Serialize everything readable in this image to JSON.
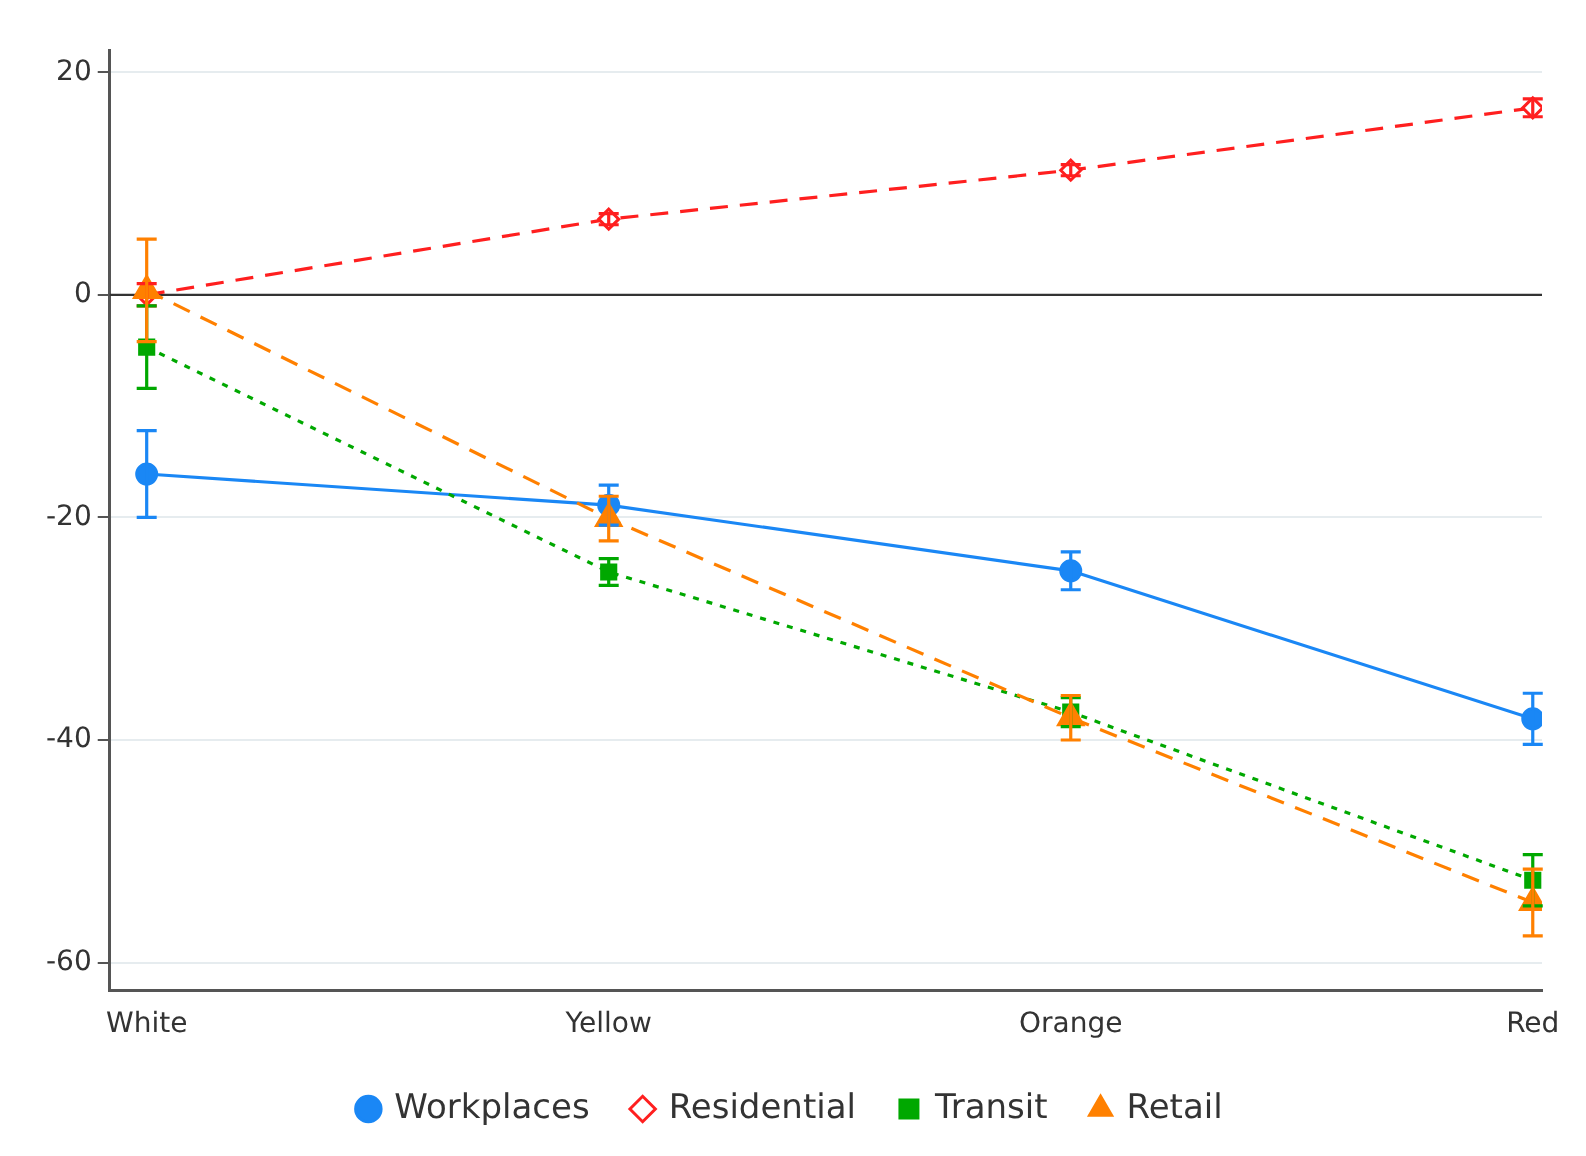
{
  "chart_data": {
    "type": "line",
    "categories": [
      "White",
      "Yellow",
      "Orange",
      "Red"
    ],
    "series": [
      {
        "name": "Workplaces",
        "color": "#1a87f5",
        "marker": "circle",
        "line_style": "solid",
        "values": [
          -16.1,
          -18.9,
          -24.8,
          -38.1
        ],
        "errors": [
          3.9,
          1.8,
          1.7,
          2.3
        ]
      },
      {
        "name": "Residential",
        "color": "#ff1f1f",
        "marker": "diamond",
        "line_style": "dashed",
        "values": [
          0,
          6.8,
          11.2,
          16.8
        ],
        "errors": [
          1,
          0.5,
          0.5,
          0.8
        ]
      },
      {
        "name": "Transit",
        "color": "#00a800",
        "marker": "square",
        "line_style": "dotted",
        "values": [
          -4.7,
          -24.9,
          -37.5,
          -52.6
        ],
        "errors": [
          3.7,
          1.2,
          1.3,
          2.3
        ]
      },
      {
        "name": "Retail",
        "color": "#ff8000",
        "marker": "triangle",
        "line_style": "dashed",
        "values": [
          0.4,
          -20.1,
          -38,
          -54.6
        ],
        "errors": [
          4.6,
          2,
          2,
          3
        ]
      }
    ],
    "ylim": [
      -62.5,
      22
    ],
    "yticks": [
      -60,
      -40,
      -20,
      0,
      20
    ],
    "grid": "y",
    "legend": "bottom",
    "ref_lines": [
      {
        "axis": "y",
        "value": 0,
        "color": "#333333"
      }
    ]
  }
}
